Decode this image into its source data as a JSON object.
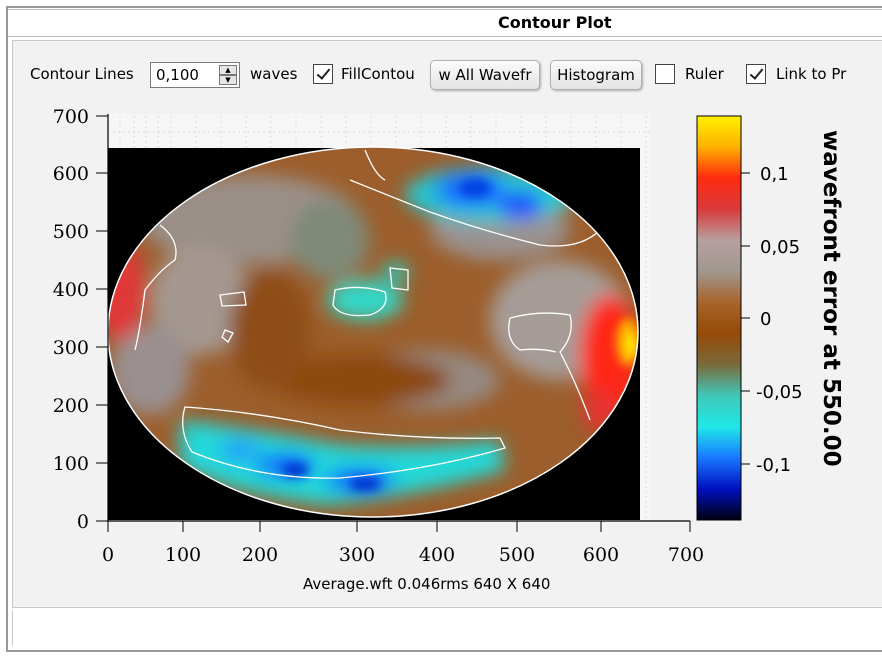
{
  "window": {
    "title": "Contour Plot"
  },
  "toolbar": {
    "contour_lines_label": "Contour Lines",
    "contour_value": "0,100",
    "waves_label": "waves",
    "fill_contours_label": "FillContou",
    "fill_contours_checked": true,
    "show_all_label": "w All Wavefr",
    "histogram_label": "Histogram",
    "ruler_label": "Ruler",
    "ruler_checked": false,
    "link_label": "Link to Pr",
    "link_checked": true
  },
  "plot": {
    "caption": "Average.wft  0.046rms 640 X 640",
    "x_ticks": [
      "0",
      "100",
      "200",
      "300",
      "400",
      "500",
      "600",
      "700"
    ],
    "y_ticks": [
      "0",
      "100",
      "200",
      "300",
      "400",
      "500",
      "600",
      "700"
    ],
    "colorbar_title": "wavefront error at 550.00",
    "colorbar_ticks": [
      "0,1",
      "0,05",
      "0",
      "-0,05",
      "-0,1"
    ],
    "colorbar_colors": [
      "#fff200",
      "#ffb000",
      "#ff2a10",
      "#d93a3a",
      "#b8a0a0",
      "#a09890",
      "#a8642a",
      "#964a08",
      "#7a6a3a",
      "#40c8b8",
      "#20e8e8",
      "#1878ff",
      "#0010c0",
      "#000010"
    ]
  },
  "chart_data": {
    "type": "heatmap",
    "title": "",
    "xlabel": "",
    "ylabel": "",
    "xlim": [
      0,
      700
    ],
    "ylim": [
      0,
      700
    ],
    "colorbar_label": "wavefront error at 550.00",
    "colorbar_range": [
      -0.14,
      0.14
    ],
    "contour_interval": 0.1
  }
}
